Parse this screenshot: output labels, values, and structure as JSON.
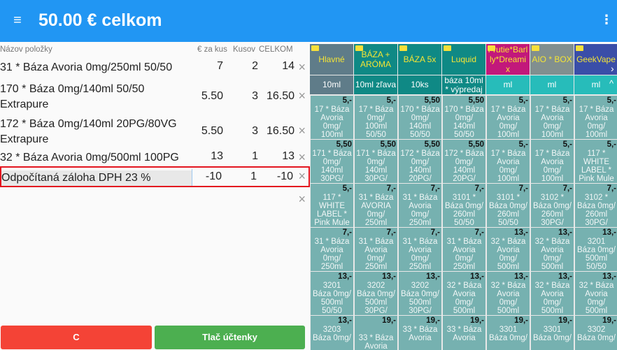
{
  "appbar": {
    "title": "50.00 € celkom",
    "menu_icon": "hamburger-icon",
    "more_icon": "kebab-icon"
  },
  "table": {
    "headers": {
      "name": "Názov položky",
      "price": "€ za kus",
      "qty": "Kusov",
      "total": "CELKOM"
    },
    "rows": [
      {
        "name": "31 * Báza Avoria 0mg/250ml 50/50",
        "price": "7",
        "qty": "2",
        "total": "14"
      },
      {
        "name": "170 * Báza 0mg/140ml 50/50 Extrapure",
        "price": "5.50",
        "qty": "3",
        "total": "16.50"
      },
      {
        "name": "172 * Báza 0mg/140ml 20PG/80VG Extrapure",
        "price": "5.50",
        "qty": "3",
        "total": "16.50"
      },
      {
        "name": "32 * Báza Avoria 0mg/500ml 100PG",
        "price": "13",
        "qty": "1",
        "total": "13"
      },
      {
        "name": "Odpočítaná záloha DPH 23 %",
        "price": "-10",
        "qty": "1",
        "total": "-10"
      }
    ],
    "remove_symbol": "×"
  },
  "buttons": {
    "clear": "C",
    "print": "Tlač účtenky",
    "clear_color": "#f44336",
    "print_color": "#4caf50"
  },
  "categories": [
    {
      "label": "Hlavné",
      "color": "#5f7c89"
    },
    {
      "label": "BÁZA + ARÓMA",
      "color": "#0f8985"
    },
    {
      "label": "BÁZA 5x",
      "color": "#0f8985"
    },
    {
      "label": "Luquid",
      "color": "#0f8985"
    },
    {
      "label": "Frutie*Barl ly*Dreami x",
      "color": "#c2187b"
    },
    {
      "label": "AIO * BOX",
      "color": "#818f8f"
    },
    {
      "label": "GeekVape",
      "color": "#3a4ea8"
    }
  ],
  "subcategories": [
    {
      "label": "10ml",
      "color": "#5f7c89"
    },
    {
      "label": "10ml zľava",
      "color": "#0f8985"
    },
    {
      "label": "10ks",
      "color": "#0f8985"
    },
    {
      "label": "báza 10ml\n* výpredaj",
      "color": "#0f8985"
    },
    {
      "label": "ml",
      "color": "#27bcba"
    },
    {
      "label": "ml",
      "color": "#27bcba"
    },
    {
      "label": "ml",
      "color": "#27bcba"
    }
  ],
  "products": [
    [
      {
        "t": "17 * Báza\nAvoria\n0mg/\n100ml",
        "p": "5,-"
      },
      {
        "t": "17 * Báza\n0mg/\n100ml\n50/50",
        "p": "5,-"
      },
      {
        "t": "170 * Báza\n0mg/\n140ml\n50/50",
        "p": "5,50"
      },
      {
        "t": "170 * Báza\n0mg/\n140ml\n50/50",
        "p": "5,50"
      },
      {
        "t": "17 * Báza\nAvoria\n0mg/\n100ml",
        "p": "5,-"
      },
      {
        "t": "17 * Báza\nAvoria\n0mg/\n100ml",
        "p": "5,-"
      },
      {
        "t": "17 * Báza\nAvoria\n0mg/\n100ml",
        "p": "5,-"
      }
    ],
    [
      {
        "t": "171 * Báza\n0mg/\n140ml\n30PG/",
        "p": "5,50"
      },
      {
        "t": "171 * Báza\n0mg/\n140ml\n30PG/",
        "p": "5,50"
      },
      {
        "t": "172 * Báza\n0mg/\n140ml\n20PG/",
        "p": "5,50"
      },
      {
        "t": "172 * Báza\n0mg/\n140ml\n20PG/",
        "p": "5,50"
      },
      {
        "t": "17 * Báza\nAvoria\n0mg/\n100ml",
        "p": "5,-"
      },
      {
        "t": "17 * Báza\nAvoria\n0mg/\n100ml",
        "p": "5,-"
      },
      {
        "t": "117 *\nWHITE\nLABEL *\nPink Mule",
        "p": "5,-"
      }
    ],
    [
      {
        "t": "117 *\nWHITE\nLABEL *\nPink Mule",
        "p": "5,-"
      },
      {
        "t": "31 * Báza\nAVORIA\n0mg/\n250ml",
        "p": "7,-"
      },
      {
        "t": "31 * Báza\nAvoria\n0mg/\n250ml",
        "p": "7,-"
      },
      {
        "t": "3101 *\nBáza 0mg/\n260ml\n50/50",
        "p": "7,-"
      },
      {
        "t": "3101 *\nBáza 0mg/\n260ml\n50/50",
        "p": "7,-"
      },
      {
        "t": "3102 *\nBáza 0mg/\n260ml\n30PG/",
        "p": "7,-"
      },
      {
        "t": "3102 *\nBáza 0mg/\n260ml\n30PG/",
        "p": "7,-"
      }
    ],
    [
      {
        "t": "31 * Báza\nAvoria\n0mg/\n250ml",
        "p": "7,-"
      },
      {
        "t": "31 * Báza\nAvoria\n0mg/\n250ml",
        "p": "7,-"
      },
      {
        "t": "31 * Báza\nAvoria\n0mg/\n250ml",
        "p": "7,-"
      },
      {
        "t": "31 * Báza\nAvoria\n0mg/\n250ml",
        "p": "7,-"
      },
      {
        "t": "32 * Báza\nAvoria\n0mg/\n500ml",
        "p": "13,-"
      },
      {
        "t": "32 * Báza\nAvoria\n0mg/\n500ml",
        "p": "13,-"
      },
      {
        "t": "3201\nBáza 0mg/\n500ml\n50/50",
        "p": "13,-"
      }
    ],
    [
      {
        "t": "3201\nBáza 0mg/\n500ml\n50/50",
        "p": "13,-"
      },
      {
        "t": "3202\nBáza 0mg/\n500ml\n30PG/",
        "p": "13,-"
      },
      {
        "t": "3202\nBáza 0mg/\n500ml\n30PG/",
        "p": "13,-"
      },
      {
        "t": "32 * Báza\nAvoria\n0mg/\n500ml",
        "p": "13,-"
      },
      {
        "t": "32 * Báza\nAvoria\n0mg/\n500ml",
        "p": "13,-"
      },
      {
        "t": "32 * Báza\nAvoria\n0mg/\n500ml",
        "p": "13,-"
      },
      {
        "t": "32 * Báza\nAvoria\n0mg/\n500ml",
        "p": "13,-"
      }
    ],
    [
      {
        "t": "3203\nBáza 0mg/",
        "p": "13,-"
      },
      {
        "t": "\n33 * Báza\nAvoria",
        "p": "19,-"
      },
      {
        "t": "33 * Báza\nAvoria",
        "p": "19,-"
      },
      {
        "t": "33 * Báza\nAvoria",
        "p": "19,-"
      },
      {
        "t": "3301\nBáza 0mg/",
        "p": "19,-"
      },
      {
        "t": "3301\nBáza 0mg/",
        "p": "19,-"
      },
      {
        "t": "3302\nBáza 0mg/",
        "p": "19,-"
      }
    ]
  ]
}
